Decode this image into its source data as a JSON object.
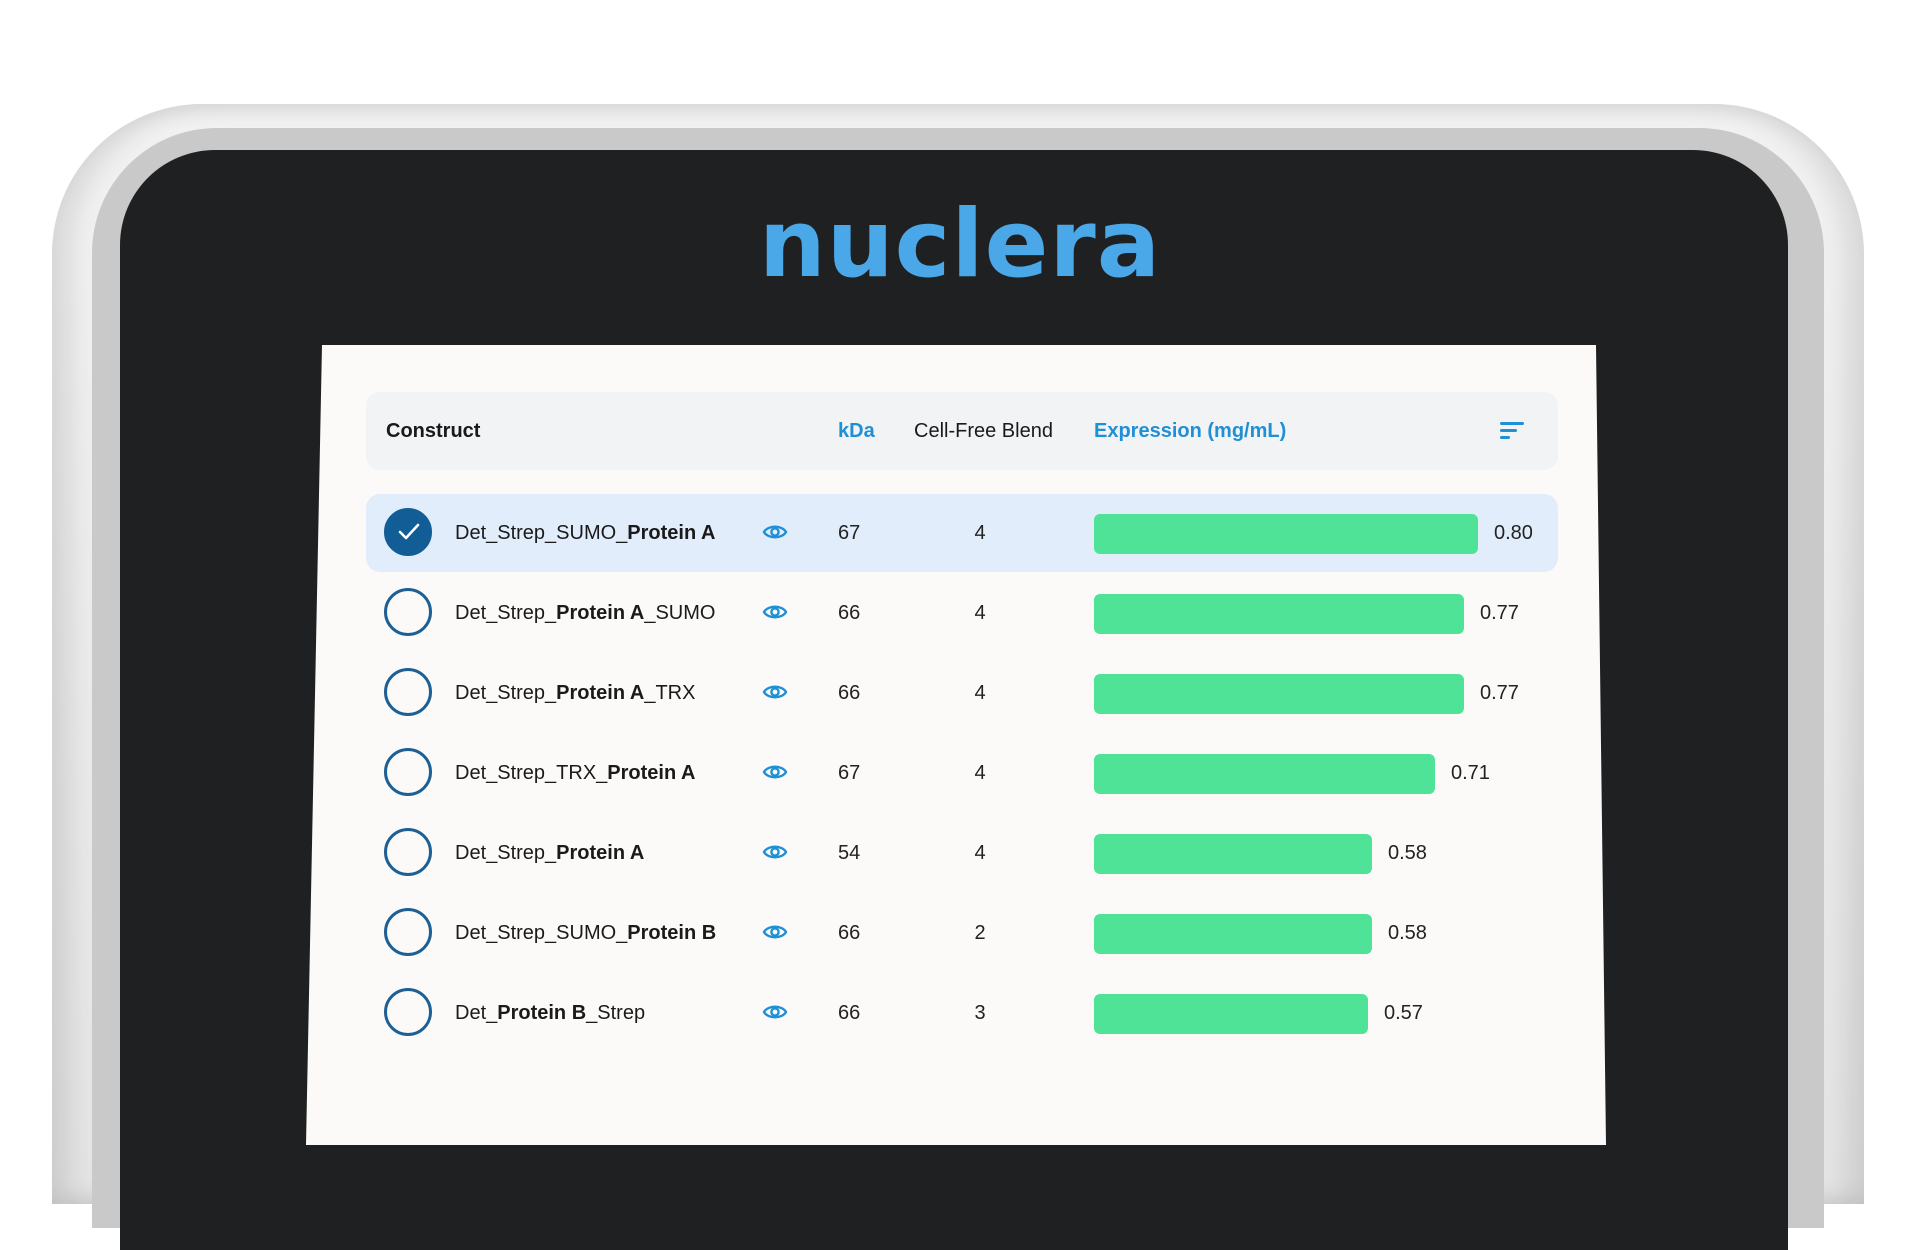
{
  "brand": {
    "logo_text": "nuclera",
    "logo_color": "#4aa7e8"
  },
  "table": {
    "headers": {
      "construct": "Construct",
      "kda": "kDa",
      "blend": "Cell-Free Blend",
      "expression": "Expression (mg/mL)"
    },
    "sort_icon": "sort-lines-icon",
    "bar_color": "#4fe397",
    "max_expression": 0.8,
    "rows": [
      {
        "selected": true,
        "name_pre": "Det_Strep_SUMO_",
        "name_bold": "Protein A",
        "name_post": "",
        "kda": "67",
        "blend": "4",
        "expression": 0.8,
        "expression_label": "0.80"
      },
      {
        "selected": false,
        "name_pre": "Det_Strep_",
        "name_bold": "Protein A",
        "name_post": "_SUMO",
        "kda": "66",
        "blend": "4",
        "expression": 0.77,
        "expression_label": "0.77"
      },
      {
        "selected": false,
        "name_pre": "Det_Strep_",
        "name_bold": "Protein A",
        "name_post": "_TRX",
        "kda": "66",
        "blend": "4",
        "expression": 0.77,
        "expression_label": "0.77"
      },
      {
        "selected": false,
        "name_pre": "Det_Strep_TRX_",
        "name_bold": "Protein A",
        "name_post": "",
        "kda": "67",
        "blend": "4",
        "expression": 0.71,
        "expression_label": "0.71"
      },
      {
        "selected": false,
        "name_pre": "Det_Strep_",
        "name_bold": "Protein A",
        "name_post": "",
        "kda": "54",
        "blend": "4",
        "expression": 0.58,
        "expression_label": "0.58"
      },
      {
        "selected": false,
        "name_pre": "Det_Strep_SUMO_",
        "name_bold": "Protein B",
        "name_post": "",
        "kda": "66",
        "blend": "2",
        "expression": 0.58,
        "expression_label": "0.58"
      },
      {
        "selected": false,
        "name_pre": "Det_",
        "name_bold": "Protein B",
        "name_post": "_Strep",
        "kda": "66",
        "blend": "3",
        "expression": 0.57,
        "expression_label": "0.57"
      }
    ]
  }
}
